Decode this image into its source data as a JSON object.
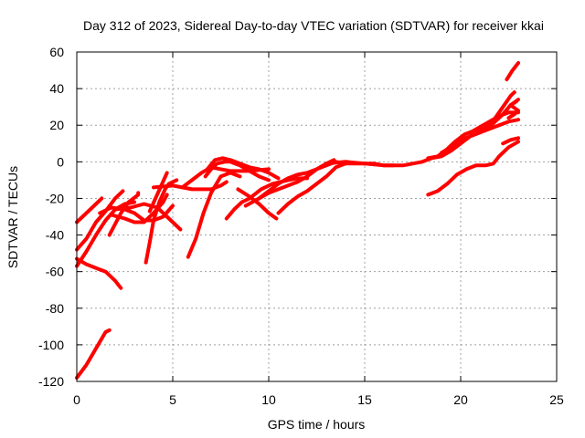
{
  "chart_data": {
    "type": "line",
    "title": "Day 312 of 2023, Sidereal Day-to-day VTEC variation (SDTVAR) for receiver kkai",
    "xlabel": "GPS time / hours",
    "ylabel": "SDTVAR / TECUs",
    "xlim": [
      0,
      25
    ],
    "ylim": [
      -120,
      60
    ],
    "xticks": [
      0,
      5,
      10,
      15,
      20,
      25
    ],
    "yticks": [
      -120,
      -100,
      -80,
      -60,
      -40,
      -20,
      0,
      20,
      40,
      60
    ],
    "grid": true,
    "line_color": "#ff0000",
    "series": [
      {
        "name": "arc1",
        "points": [
          [
            0,
            -33
          ],
          [
            0.5,
            -28
          ],
          [
            1.0,
            -23
          ],
          [
            1.3,
            -20
          ]
        ]
      },
      {
        "name": "arc2",
        "points": [
          [
            0,
            -48
          ],
          [
            0.5,
            -42
          ],
          [
            1.0,
            -33
          ],
          [
            1.5,
            -27
          ],
          [
            2.0,
            -20
          ],
          [
            2.4,
            -16
          ]
        ]
      },
      {
        "name": "arc3",
        "points": [
          [
            0,
            -57
          ],
          [
            0.5,
            -49
          ],
          [
            1.0,
            -40
          ],
          [
            1.5,
            -32
          ],
          [
            2.0,
            -26
          ],
          [
            2.5,
            -23
          ],
          [
            3.0,
            -22
          ]
        ]
      },
      {
        "name": "arc4",
        "points": [
          [
            0,
            -53
          ],
          [
            0.5,
            -56
          ],
          [
            1.0,
            -58
          ],
          [
            1.5,
            -60
          ],
          [
            2.0,
            -65
          ],
          [
            2.3,
            -69
          ]
        ]
      },
      {
        "name": "arc5",
        "points": [
          [
            0,
            -118
          ],
          [
            0.5,
            -111
          ],
          [
            1.0,
            -102
          ],
          [
            1.5,
            -93
          ],
          [
            1.7,
            -92
          ]
        ]
      },
      {
        "name": "arc6",
        "points": [
          [
            1.7,
            -40
          ],
          [
            2.0,
            -34
          ],
          [
            2.3,
            -28
          ],
          [
            2.7,
            -22
          ],
          [
            3.2,
            -18
          ],
          [
            3.2,
            -17
          ]
        ]
      },
      {
        "name": "arc7",
        "points": [
          [
            1.2,
            -28
          ],
          [
            1.8,
            -25
          ],
          [
            2.5,
            -26
          ],
          [
            3.0,
            -28
          ],
          [
            3.5,
            -32
          ],
          [
            4.0,
            -32
          ],
          [
            4.5,
            -30
          ],
          [
            5.0,
            -24
          ]
        ]
      },
      {
        "name": "arc8",
        "points": [
          [
            1.8,
            -29
          ],
          [
            2.5,
            -31
          ],
          [
            3.0,
            -33
          ],
          [
            3.5,
            -33
          ],
          [
            4.0,
            -28
          ],
          [
            4.5,
            -22
          ],
          [
            4.7,
            -18
          ]
        ]
      },
      {
        "name": "arc9",
        "points": [
          [
            2.0,
            -26
          ],
          [
            2.8,
            -25
          ],
          [
            3.5,
            -23
          ],
          [
            4.2,
            -25
          ],
          [
            4.8,
            -31
          ],
          [
            5.4,
            -37
          ]
        ]
      },
      {
        "name": "arc10",
        "points": [
          [
            3.6,
            -55
          ],
          [
            3.8,
            -44
          ],
          [
            4.0,
            -32
          ],
          [
            4.3,
            -22
          ],
          [
            4.6,
            -15
          ],
          [
            4.8,
            -12
          ],
          [
            5.2,
            -10
          ]
        ]
      },
      {
        "name": "arc11",
        "points": [
          [
            3.8,
            -27
          ],
          [
            4.1,
            -20
          ],
          [
            4.4,
            -13
          ],
          [
            4.7,
            -6
          ]
        ]
      },
      {
        "name": "arc12",
        "points": [
          [
            4.0,
            -14
          ],
          [
            5.0,
            -13
          ],
          [
            6.0,
            -15
          ],
          [
            7.0,
            -15
          ],
          [
            7.5,
            -13
          ],
          [
            7.8,
            -11
          ]
        ]
      },
      {
        "name": "arc13",
        "points": [
          [
            5.5,
            -14
          ],
          [
            6.0,
            -10
          ],
          [
            6.5,
            -6
          ],
          [
            7.0,
            -3
          ],
          [
            7.5,
            -4
          ],
          [
            8.0,
            -5
          ],
          [
            9.0,
            -5
          ],
          [
            10.0,
            -4
          ]
        ]
      },
      {
        "name": "arc14",
        "points": [
          [
            5.8,
            -52
          ],
          [
            6.2,
            -42
          ],
          [
            6.6,
            -28
          ],
          [
            7.0,
            -17
          ],
          [
            7.5,
            -8
          ],
          [
            8.0,
            -6
          ],
          [
            8.5,
            -8
          ]
        ]
      },
      {
        "name": "arc15",
        "points": [
          [
            6.7,
            -8
          ],
          [
            7.0,
            -4
          ],
          [
            7.3,
            -1
          ],
          [
            7.7,
            0
          ],
          [
            8.0,
            0
          ],
          [
            8.5,
            -2
          ],
          [
            9.0,
            -5
          ],
          [
            9.5,
            -8
          ],
          [
            10.0,
            -10
          ]
        ]
      },
      {
        "name": "arc16",
        "points": [
          [
            6.8,
            -4
          ],
          [
            7.2,
            1
          ],
          [
            7.6,
            2
          ],
          [
            8.0,
            1
          ],
          [
            8.5,
            -1
          ],
          [
            9.0,
            -3
          ],
          [
            9.5,
            -4
          ],
          [
            10.0,
            -6
          ],
          [
            10.5,
            -9
          ]
        ]
      },
      {
        "name": "arc17",
        "points": [
          [
            7.8,
            -31
          ],
          [
            8.2,
            -26
          ],
          [
            8.6,
            -22
          ],
          [
            9.0,
            -20
          ],
          [
            9.6,
            -15
          ],
          [
            10.2,
            -12
          ],
          [
            11.0,
            -10
          ],
          [
            11.5,
            -9
          ],
          [
            12.0,
            -9
          ]
        ]
      },
      {
        "name": "arc18",
        "points": [
          [
            8.4,
            -15
          ],
          [
            9.0,
            -19
          ],
          [
            9.5,
            -23
          ],
          [
            10.0,
            -28
          ],
          [
            10.4,
            -31
          ]
        ]
      },
      {
        "name": "arc19",
        "points": [
          [
            8.8,
            -24
          ],
          [
            9.5,
            -20
          ],
          [
            10.0,
            -16
          ],
          [
            10.5,
            -12
          ],
          [
            11.0,
            -9
          ],
          [
            11.5,
            -7
          ],
          [
            12.0,
            -6
          ],
          [
            12.5,
            -4
          ],
          [
            13.0,
            -1
          ],
          [
            13.4,
            1
          ]
        ]
      },
      {
        "name": "arc20",
        "points": [
          [
            9.5,
            -20
          ],
          [
            10.0,
            -17
          ],
          [
            10.5,
            -15
          ],
          [
            11.0,
            -13
          ],
          [
            11.5,
            -11
          ],
          [
            12.0,
            -8
          ],
          [
            12.5,
            -4
          ],
          [
            13.0,
            -2
          ],
          [
            13.5,
            0
          ],
          [
            14.0,
            -1
          ]
        ]
      },
      {
        "name": "arc21",
        "points": [
          [
            10.5,
            -28
          ],
          [
            11.0,
            -23
          ],
          [
            11.5,
            -19
          ],
          [
            12.0,
            -16
          ],
          [
            12.5,
            -12
          ],
          [
            13.0,
            -8
          ],
          [
            13.5,
            -3
          ],
          [
            14.0,
            -1
          ],
          [
            15.0,
            -1
          ],
          [
            16.0,
            -2
          ],
          [
            16.5,
            -2
          ]
        ]
      },
      {
        "name": "arc22",
        "points": [
          [
            13.0,
            -1
          ],
          [
            14.0,
            0
          ],
          [
            15.0,
            -1
          ],
          [
            15.5,
            -1
          ],
          [
            16.0,
            -2
          ],
          [
            16.5,
            -2
          ],
          [
            17.0,
            -2
          ],
          [
            17.5,
            -1
          ],
          [
            18.0,
            0
          ],
          [
            18.5,
            2
          ],
          [
            19.0,
            3
          ],
          [
            19.5,
            6
          ],
          [
            20.0,
            10
          ],
          [
            20.5,
            14
          ],
          [
            21.0,
            16
          ],
          [
            21.5,
            18
          ],
          [
            22.0,
            20
          ],
          [
            22.5,
            22
          ],
          [
            23.0,
            23
          ]
        ]
      },
      {
        "name": "arc23",
        "points": [
          [
            18.3,
            2
          ],
          [
            18.8,
            3
          ],
          [
            19.3,
            7
          ],
          [
            19.7,
            11
          ],
          [
            20.2,
            15
          ],
          [
            20.7,
            17
          ],
          [
            21.2,
            18
          ],
          [
            21.7,
            21
          ],
          [
            22.2,
            26
          ],
          [
            22.6,
            31
          ],
          [
            22.9,
            33
          ]
        ]
      },
      {
        "name": "arc24",
        "points": [
          [
            19.0,
            5
          ],
          [
            19.5,
            8
          ],
          [
            20.0,
            12
          ],
          [
            20.5,
            14
          ],
          [
            21.0,
            16
          ],
          [
            21.5,
            20
          ],
          [
            21.8,
            24
          ],
          [
            22.2,
            30
          ],
          [
            22.6,
            36
          ],
          [
            22.8,
            38
          ]
        ]
      },
      {
        "name": "arc25",
        "points": [
          [
            20.5,
            16
          ],
          [
            21.0,
            19
          ],
          [
            21.5,
            22
          ],
          [
            22.0,
            25
          ],
          [
            22.5,
            27
          ],
          [
            23.0,
            27
          ]
        ]
      },
      {
        "name": "arc26",
        "points": [
          [
            18.3,
            -18
          ],
          [
            18.8,
            -16
          ],
          [
            19.3,
            -12
          ],
          [
            19.8,
            -7
          ],
          [
            20.3,
            -4
          ],
          [
            20.8,
            -2
          ],
          [
            21.3,
            -2
          ],
          [
            21.7,
            -1
          ],
          [
            22.0,
            3
          ],
          [
            22.5,
            8
          ],
          [
            23.0,
            11
          ]
        ]
      },
      {
        "name": "arc27",
        "points": [
          [
            22.2,
            10
          ],
          [
            22.6,
            12
          ],
          [
            23.0,
            13
          ]
        ]
      },
      {
        "name": "arc28",
        "points": [
          [
            22.4,
            45
          ],
          [
            22.7,
            50
          ],
          [
            23.0,
            54
          ]
        ]
      },
      {
        "name": "arc29",
        "points": [
          [
            22.5,
            24
          ],
          [
            22.8,
            26
          ],
          [
            23.0,
            28
          ],
          [
            22.6,
            31
          ],
          [
            23.0,
            34
          ]
        ]
      }
    ]
  }
}
